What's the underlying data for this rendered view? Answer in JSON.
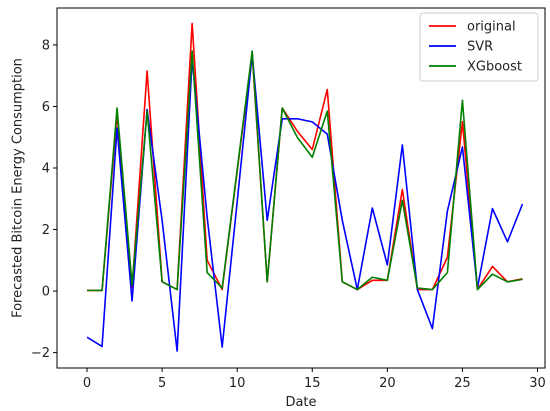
{
  "chart_data": {
    "type": "line",
    "title": "",
    "xlabel": "Date",
    "ylabel": "Forecasted Bitcoin Energy Consumption",
    "xlim": [
      -2,
      30.5
    ],
    "ylim": [
      -2.5,
      9.2
    ],
    "xticks": [
      0,
      5,
      10,
      15,
      20,
      25,
      30
    ],
    "yticks": [
      -2,
      0,
      2,
      4,
      6,
      8
    ],
    "grid": false,
    "legend_position": "top-right",
    "x": [
      0,
      1,
      2,
      3,
      4,
      5,
      6,
      7,
      8,
      9,
      10,
      11,
      12,
      13,
      14,
      15,
      16,
      17,
      18,
      19,
      20,
      21,
      22,
      23,
      24,
      25,
      26,
      27,
      28,
      29
    ],
    "series": [
      {
        "name": "original",
        "color": "#ff0000",
        "values": [
          0.02,
          0.02,
          5.75,
          0.1,
          7.15,
          0.3,
          0.05,
          8.7,
          1.0,
          0.05,
          3.9,
          7.7,
          0.3,
          5.95,
          5.2,
          4.6,
          6.55,
          0.3,
          0.05,
          0.35,
          0.35,
          3.3,
          0.05,
          0.05,
          1.1,
          5.5,
          0.05,
          0.8,
          0.3,
          0.4
        ]
      },
      {
        "name": "SVR",
        "color": "#0000ff",
        "values": [
          -1.5,
          -1.8,
          5.3,
          -0.32,
          5.9,
          2.3,
          -1.95,
          7.55,
          2.4,
          -1.82,
          2.9,
          7.7,
          2.3,
          5.6,
          5.6,
          5.5,
          5.1,
          2.3,
          0.05,
          2.7,
          0.85,
          4.75,
          0.05,
          -1.22,
          2.6,
          4.68,
          0.1,
          2.68,
          1.6,
          2.83
        ]
      },
      {
        "name": "XGboost",
        "color": "#008000",
        "values": [
          0.02,
          0.02,
          5.95,
          0.2,
          5.85,
          0.3,
          0.05,
          7.8,
          0.6,
          0.1,
          3.95,
          7.8,
          0.3,
          5.95,
          5.0,
          4.35,
          5.85,
          0.3,
          0.05,
          0.45,
          0.35,
          2.95,
          0.1,
          0.05,
          0.6,
          6.2,
          0.05,
          0.55,
          0.3,
          0.38
        ]
      }
    ]
  }
}
